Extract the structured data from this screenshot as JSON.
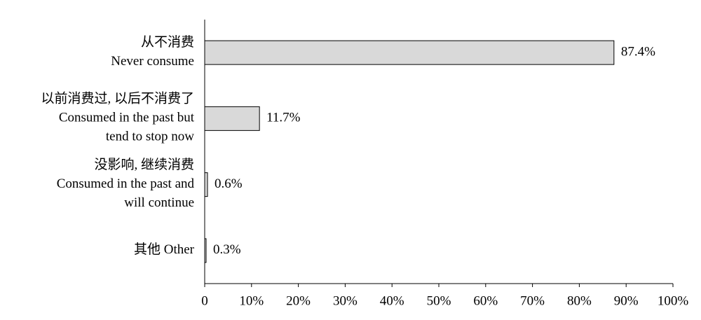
{
  "chart_data": {
    "type": "hbar",
    "categories": [
      [
        "从不消费",
        "Never consume"
      ],
      [
        "以前消费过, 以后不消费了",
        "Consumed in the past but",
        "tend to stop now"
      ],
      [
        "没影响, 继续消费",
        "Consumed in the past and",
        "will continue"
      ],
      [
        "其他 Other"
      ]
    ],
    "values": [
      87.4,
      11.7,
      0.6,
      0.3
    ],
    "value_labels": [
      "87.4%",
      "11.7%",
      "0.6%",
      "0.3%"
    ],
    "color": "#d9d9d9",
    "xlim": [
      0,
      100
    ],
    "xticks": [
      0,
      {
        "value": 10,
        "label": "10%"
      },
      {
        "value": 20,
        "label": "20%"
      },
      {
        "value": 30,
        "label": "30%"
      },
      {
        "value": 40,
        "label": "40%"
      },
      {
        "value": 50,
        "label": "50%"
      },
      {
        "value": 60,
        "label": "60%"
      },
      {
        "value": 70,
        "label": "70%"
      },
      {
        "value": 80,
        "label": "80%"
      },
      {
        "value": 90,
        "label": "90%"
      },
      {
        "value": 100,
        "label": "100%"
      }
    ],
    "grid": false
  }
}
